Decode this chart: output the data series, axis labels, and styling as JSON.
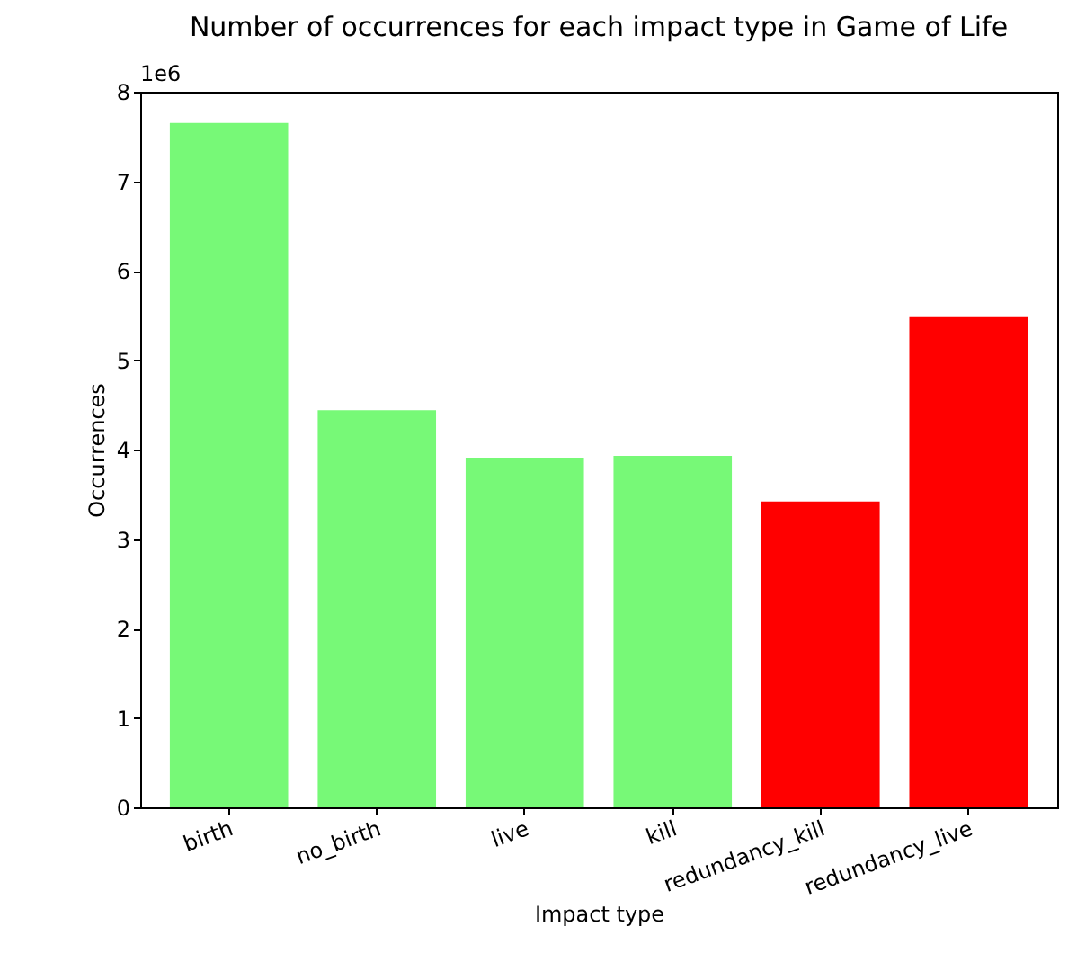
{
  "chart_data": {
    "type": "bar",
    "title": "Number of occurrences for each impact type in Game of Life",
    "xlabel": "Impact type",
    "ylabel": "Occurrences",
    "categories": [
      "birth",
      "no_birth",
      "live",
      "kill",
      "redundancy_kill",
      "redundancy_live"
    ],
    "values": [
      7.65,
      4.44,
      3.91,
      3.93,
      3.42,
      5.48
    ],
    "colors": [
      "#77f977",
      "#77f977",
      "#77f977",
      "#77f977",
      "#ff0000",
      "#ff0000"
    ],
    "ylim": [
      0,
      8
    ],
    "yticks": [
      0,
      1,
      2,
      3,
      4,
      5,
      6,
      7,
      8
    ],
    "annotations": [
      "1e6"
    ],
    "grid": false
  }
}
